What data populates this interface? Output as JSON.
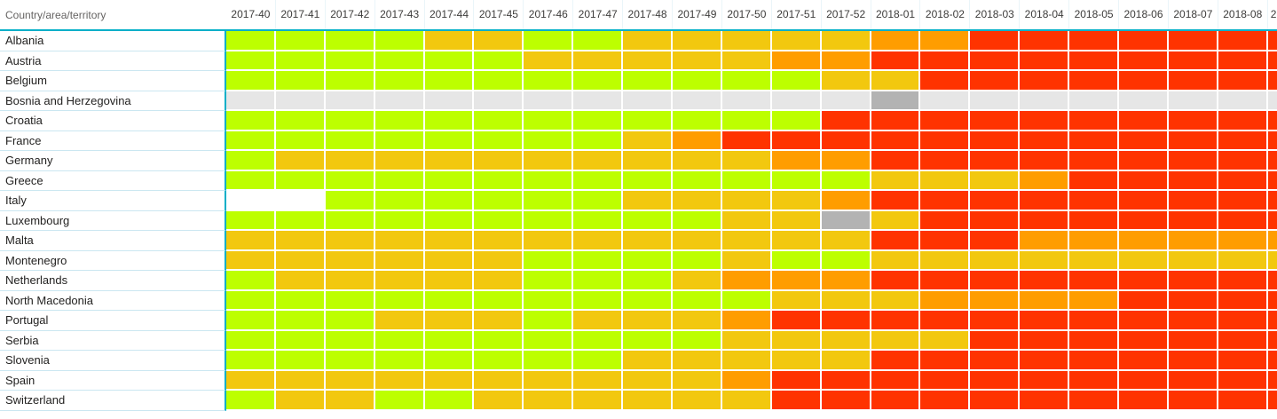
{
  "header": {
    "row_label": "Country/area/territory"
  },
  "palette": {
    "G": "#BDFF00",
    "A": "#F2C80F",
    "O": "#FF9D00",
    "R": "#FF3300",
    "X": "#E6E6E6",
    "D": "#B3B3B3",
    "W": "#FFFFFF"
  },
  "accent_colors": {
    "header_underline_teal": "#00AFC8",
    "row_separator_blue": "#CBE7F1",
    "gridline_white": "#FFFFFF"
  },
  "chart_data": {
    "type": "heatmap",
    "title": "",
    "xlabel": "",
    "ylabel": "Country/area/territory",
    "grid": "white 2px gridlines between cells",
    "legend_position": "none visible",
    "columns": [
      "2017-40",
      "2017-41",
      "2017-42",
      "2017-43",
      "2017-44",
      "2017-45",
      "2017-46",
      "2017-47",
      "2017-48",
      "2017-49",
      "2017-50",
      "2017-51",
      "2017-52",
      "2018-01",
      "2018-02",
      "2018-03",
      "2018-04",
      "2018-05",
      "2018-06",
      "2018-07",
      "2018-08",
      "2"
    ],
    "rows": [
      "Albania",
      "Austria",
      "Belgium",
      "Bosnia and Herzegovina",
      "Croatia",
      "France",
      "Germany",
      "Greece",
      "Italy",
      "Luxembourg",
      "Malta",
      "Montenegro",
      "Netherlands",
      "North Macedonia",
      "Portugal",
      "Serbia",
      "Slovenia",
      "Spain",
      "Switzerland"
    ],
    "values": [
      "GGGGAAGGAAAAAOORRRRRRR",
      "GGGGGGAAAAAOORRRRRRRRR",
      "GGGGGGGGGGGGAARRRRRRRR",
      "XXXXXXXXXXXXXDXXXXXXXX",
      "GGGGGGGGGGGGRRRRRRRRRR",
      "GGGGGGGGAORRRRRRRRRRRR",
      "GAAAAAAAAAAOORRRRRRRRR",
      "GGGGGGGGGGGGGAAAORRRRR",
      "WWGGGGGGAAAAORRRRRRRRR",
      "GGGGGGGGGGAADARRRRRRRR",
      "AAAAAAAAAAAAARRROOOOOO",
      "AAAAAAGGGGAGGAAAAAAAAA",
      "GAAAAAGGGAOOORRRRRRRRR",
      "GGGGGGGGGGGAAAOOOORRRR",
      "GGGAAAGAAAORRRRRRRRRRR",
      "GGGGGGGGGGAAAAARRRRRRR",
      "GGGGGGGGAAAAARRRRRRRRR",
      "AAAAAAAAAAORRRRRRRRRRR",
      "GAAGGAAAAAARRRRRRRRRRR"
    ],
    "value_code_meaning": {
      "G": "green cell",
      "A": "yellow-amber cell",
      "O": "orange cell",
      "R": "red cell",
      "X": "light gray cell",
      "D": "dark gray cell",
      "W": "white (blank) cell"
    }
  }
}
